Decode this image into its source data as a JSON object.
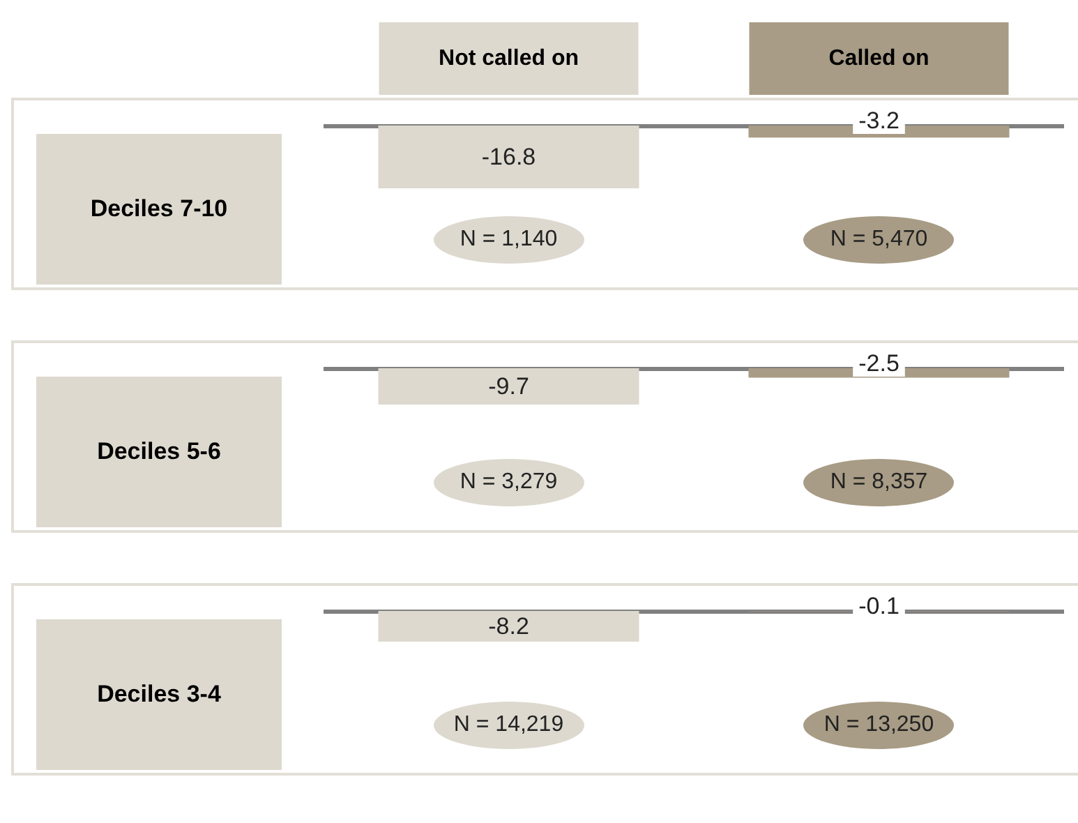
{
  "chart_data": [
    {
      "type": "bar",
      "title": "Deciles 7-10",
      "categories": [
        "Not called on",
        "Called on"
      ],
      "values": [
        -16.8,
        -3.2
      ],
      "colors": [
        "#ddd9cf",
        "#a89c86"
      ],
      "data_labels": true,
      "tick_labels": "x",
      "annotations": [
        "N = 1,140",
        "N = 5,470"
      ]
    },
    {
      "type": "bar",
      "title": "Deciles 5-6",
      "categories": [
        null,
        null
      ],
      "values": [
        -9.7,
        -2.5
      ],
      "colors": [
        "#ddd9cf",
        "#a89c86"
      ],
      "data_labels": true,
      "tick_labels": false,
      "annotations": [
        "N = 3,279",
        "N = 8,357"
      ]
    },
    {
      "type": "bar",
      "title": "Deciles 3-4",
      "categories": [
        null,
        null
      ],
      "values": [
        -8.2,
        -0.1
      ],
      "colors": [
        "#ddd9cf",
        "#a89c86"
      ],
      "data_labels": true,
      "tick_labels": false,
      "annotations": [
        "N = 14,219",
        "N = 13,250"
      ]
    }
  ]
}
